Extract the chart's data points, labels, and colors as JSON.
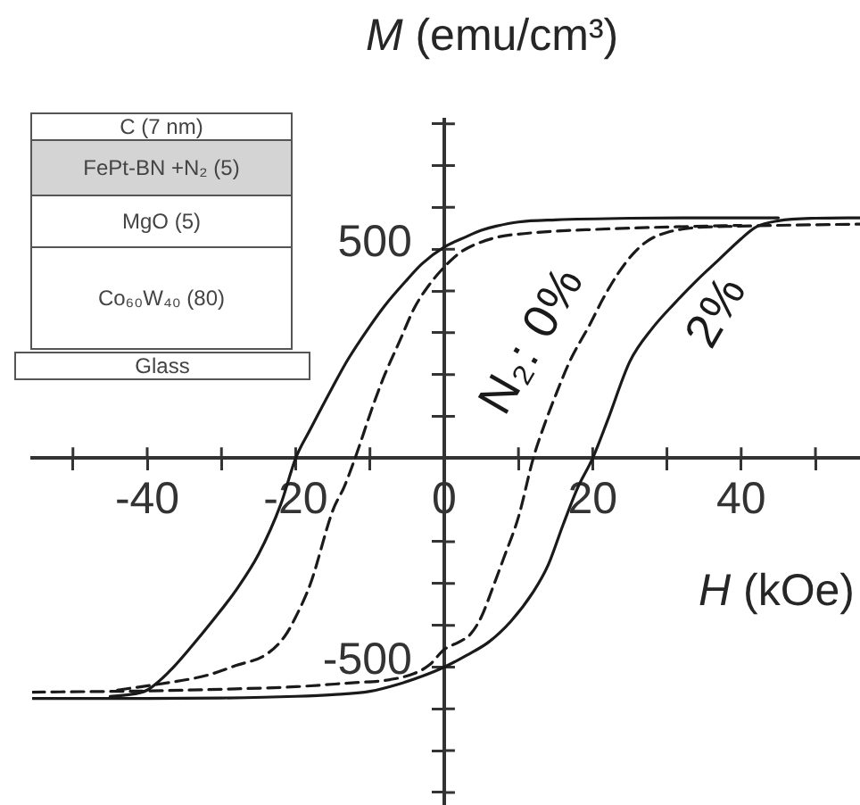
{
  "chart_data": {
    "type": "line",
    "xlabel": "H (kOe)",
    "ylabel": "M (emu/cm³)",
    "annotations": [
      "C (7 nm)",
      "FePt-BN +N₂ (5)",
      "MgO (5)",
      "Co₆₀W₄₀ (80)",
      "Glass"
    ],
    "xlim": [
      -55.5,
      56
    ],
    "ylim": [
      -830,
      810
    ],
    "xticks": [
      {
        "value": -50,
        "label": null
      },
      -40,
      {
        "value": -30,
        "label": null
      },
      -20,
      {
        "value": -10,
        "label": null
      },
      0,
      {
        "value": 10,
        "label": null
      },
      20,
      {
        "value": 30,
        "label": null
      },
      40,
      {
        "value": 50,
        "label": null
      }
    ],
    "yticks": [
      {
        "value": -800,
        "label": null
      },
      {
        "value": -700,
        "label": null
      },
      {
        "value": -600,
        "label": null
      },
      -500,
      {
        "value": -400,
        "label": null
      },
      {
        "value": -300,
        "label": null
      },
      {
        "value": -200,
        "label": null
      },
      {
        "value": -100,
        "label": null
      },
      {
        "value": 0,
        "label": null
      },
      {
        "value": 100,
        "label": null
      },
      {
        "value": 200,
        "label": null
      },
      {
        "value": 300,
        "label": null
      },
      {
        "value": 400,
        "label": null
      },
      500,
      {
        "value": 600,
        "label": null
      },
      {
        "value": 700,
        "label": null
      },
      {
        "value": 800,
        "label": null
      }
    ],
    "series": [
      {
        "name": "N₂: 0%",
        "color": "#1a1a1a",
        "line_style": "dashed",
        "x": [
          -55.5,
          -40,
          -30,
          -20,
          -12,
          -8,
          -4,
          -2,
          0,
          2,
          3.5,
          5,
          6.5,
          8,
          10,
          12,
          13.5,
          15,
          17,
          19.5,
          21.5,
          23.5,
          25.5,
          27.5,
          30,
          33,
          40,
          56
        ],
        "values": [
          -560,
          -557,
          -553,
          -547,
          -537,
          -532,
          -515,
          -495,
          -458,
          -440,
          -422,
          -380,
          -312,
          -240,
          -141,
          0,
          80,
          150,
          235,
          316,
          385,
          444,
          490,
          521,
          540,
          550,
          555,
          560
        ]
      },
      {
        "color": "#1a1a1a",
        "line_style": "dashed",
        "x": [
          -44,
          -36,
          -32,
          -28,
          -24,
          -21.5,
          -20,
          -18,
          -15,
          -13.5,
          -12,
          -9.5,
          -8,
          -6,
          -4,
          -2,
          0,
          2,
          4,
          7.5,
          10,
          15,
          20,
          30,
          40
        ],
        "values": [
          -555,
          -534,
          -520,
          -496,
          -470,
          -427,
          -380,
          -300,
          -125,
          -70,
          0,
          130,
          200,
          280,
          360,
          415,
          457,
          490,
          510,
          530,
          536,
          543,
          547,
          553,
          557
        ]
      },
      {
        "name": "2%",
        "color": "#1a1a1a",
        "line_style": "solid",
        "x": [
          -55.5,
          -40,
          -30,
          -20,
          -15,
          -10,
          -6,
          -3,
          0,
          3,
          6,
          9,
          12,
          14,
          16,
          18,
          20,
          22,
          25,
          28,
          31,
          34,
          37,
          40,
          42,
          45,
          50,
          56
        ],
        "values": [
          -575,
          -575,
          -574,
          -570,
          -566,
          -558,
          -540,
          -522,
          -500,
          -472,
          -440,
          -390,
          -320,
          -256,
          -160,
          -70,
          0,
          90,
          231,
          310,
          370,
          425,
          475,
          525,
          553,
          568,
          574,
          575
        ]
      },
      {
        "color": "#1a1a1a",
        "line_style": "solid",
        "x": [
          -45,
          -43,
          -40,
          -37,
          -34,
          -31,
          -28,
          -25,
          -22,
          -20,
          -18,
          -15,
          -13,
          -10,
          -8,
          -5,
          -3,
          0,
          3,
          5,
          7,
          10,
          15,
          25,
          35,
          45
        ],
        "values": [
          -570,
          -567,
          -555,
          -510,
          -450,
          -385,
          -315,
          -230,
          -110,
          0,
          70,
          171,
          235,
          316,
          365,
          427,
          465,
          505,
          530,
          545,
          555,
          565,
          570,
          574,
          575,
          575
        ]
      }
    ]
  }
}
